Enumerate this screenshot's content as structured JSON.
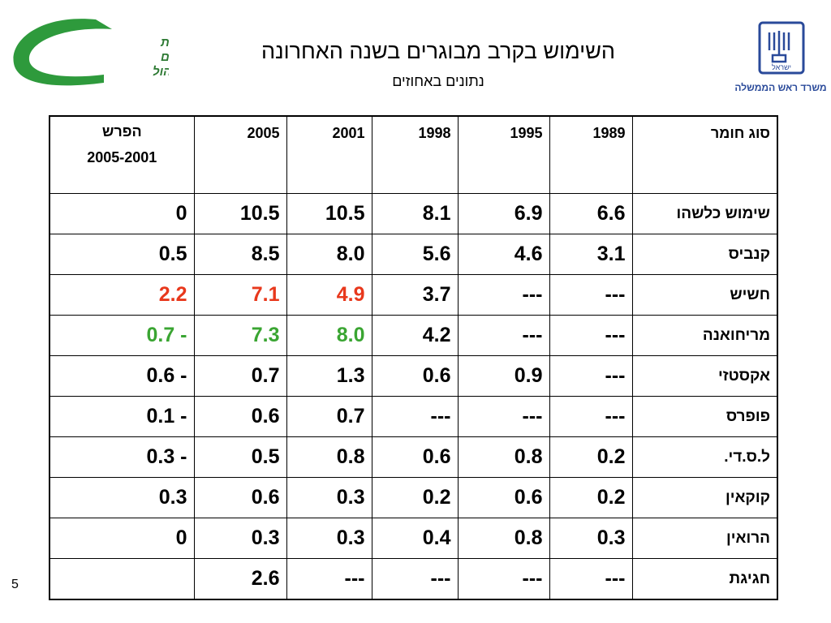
{
  "header": {
    "logo_left_text": [
      "הרשות הלאומית",
      "למלחמה בסמים",
      "ואלכוהול"
    ],
    "logo_right_emblem": "ישראל",
    "logo_right_text": "משרד ראש הממשלה",
    "title": "השימוש בקרב מבוגרים בשנה האחרונה",
    "subtitle": "נתונים באחוזים"
  },
  "table": {
    "header": [
      "סוג חומר",
      "1989",
      "1995",
      "1998",
      "2001",
      "2005",
      [
        "הפרש",
        "2005-2001"
      ]
    ],
    "rows": [
      {
        "cells": [
          "שימוש כלשהו",
          "6.6",
          "6.9",
          "8.1",
          "10.5",
          "10.5",
          "0"
        ]
      },
      {
        "cells": [
          "קנביס",
          "3.1",
          "4.6",
          "5.6",
          "8.0",
          "8.5",
          "0.5"
        ]
      },
      {
        "cells": [
          "חשיש",
          "---",
          "---",
          "3.7",
          "4.9",
          "7.1",
          "2.2"
        ],
        "color": "#e8381c"
      },
      {
        "cells": [
          "מריחואנה",
          "---",
          "---",
          "4.2",
          "8.0",
          "7.3",
          "0.7 -"
        ],
        "color": "#3aa532"
      },
      {
        "cells": [
          "אקסטזי",
          "---",
          "0.9",
          "0.6",
          "1.3",
          "0.7",
          "0.6 -"
        ]
      },
      {
        "cells": [
          "פופרס",
          "---",
          "---",
          "---",
          "0.7",
          "0.6",
          "0.1 -"
        ]
      },
      {
        "cells": [
          "ל.ס.די.",
          "0.2",
          "0.8",
          "0.6",
          "0.8",
          "0.5",
          "0.3 -"
        ]
      },
      {
        "cells": [
          "קוקאין",
          "0.2",
          "0.6",
          "0.2",
          "0.3",
          "0.6",
          "0.3"
        ]
      },
      {
        "cells": [
          "הרואין",
          "0.3",
          "0.8",
          "0.4",
          "0.3",
          "0.3",
          "0"
        ]
      },
      {
        "cells": [
          "חגיגת",
          "---",
          "---",
          "---",
          "---",
          "2.6"
        ]
      }
    ]
  },
  "page_number": "5"
}
